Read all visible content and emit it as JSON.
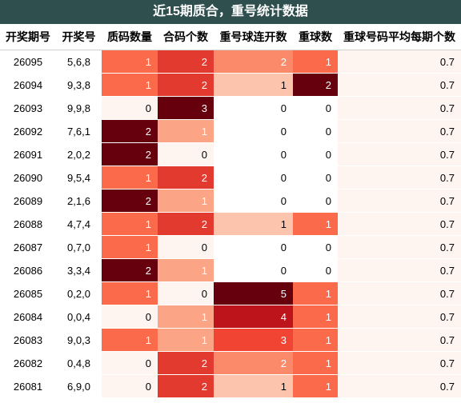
{
  "title": "近15期质合，重号统计数据",
  "headers": [
    "开奖期号",
    "开奖号",
    "质码数量",
    "合码个数",
    "重号球连开数",
    "重球数",
    "重球号码平均每期个数"
  ],
  "rows": [
    {
      "issue": "26095",
      "nums": "5,6,8",
      "prime": "1",
      "composite": "2",
      "repeat_streak": "2",
      "repeat_count": "1",
      "avg": "0.7"
    },
    {
      "issue": "26094",
      "nums": "9,3,8",
      "prime": "1",
      "composite": "2",
      "repeat_streak": "1",
      "repeat_count": "2",
      "avg": "0.7"
    },
    {
      "issue": "26093",
      "nums": "9,9,8",
      "prime": "0",
      "composite": "3",
      "repeat_streak": "0",
      "repeat_count": "0",
      "avg": "0.7"
    },
    {
      "issue": "26092",
      "nums": "7,6,1",
      "prime": "2",
      "composite": "1",
      "repeat_streak": "0",
      "repeat_count": "0",
      "avg": "0.7"
    },
    {
      "issue": "26091",
      "nums": "2,0,2",
      "prime": "2",
      "composite": "0",
      "repeat_streak": "0",
      "repeat_count": "0",
      "avg": "0.7"
    },
    {
      "issue": "26090",
      "nums": "9,5,4",
      "prime": "1",
      "composite": "2",
      "repeat_streak": "0",
      "repeat_count": "0",
      "avg": "0.7"
    },
    {
      "issue": "26089",
      "nums": "2,1,6",
      "prime": "2",
      "composite": "1",
      "repeat_streak": "0",
      "repeat_count": "0",
      "avg": "0.7"
    },
    {
      "issue": "26088",
      "nums": "4,7,4",
      "prime": "1",
      "composite": "2",
      "repeat_streak": "1",
      "repeat_count": "1",
      "avg": "0.7"
    },
    {
      "issue": "26087",
      "nums": "0,7,0",
      "prime": "1",
      "composite": "0",
      "repeat_streak": "0",
      "repeat_count": "0",
      "avg": "0.7"
    },
    {
      "issue": "26086",
      "nums": "3,3,4",
      "prime": "2",
      "composite": "1",
      "repeat_streak": "0",
      "repeat_count": "0",
      "avg": "0.7"
    },
    {
      "issue": "26085",
      "nums": "0,2,0",
      "prime": "1",
      "composite": "0",
      "repeat_streak": "5",
      "repeat_count": "1",
      "avg": "0.7"
    },
    {
      "issue": "26084",
      "nums": "0,0,4",
      "prime": "0",
      "composite": "1",
      "repeat_streak": "4",
      "repeat_count": "1",
      "avg": "0.7"
    },
    {
      "issue": "26083",
      "nums": "9,0,3",
      "prime": "1",
      "composite": "1",
      "repeat_streak": "3",
      "repeat_count": "1",
      "avg": "0.7"
    },
    {
      "issue": "26082",
      "nums": "0,4,8",
      "prime": "0",
      "composite": "2",
      "repeat_streak": "2",
      "repeat_count": "1",
      "avg": "0.7"
    },
    {
      "issue": "26081",
      "nums": "6,9,0",
      "prime": "0",
      "composite": "2",
      "repeat_streak": "1",
      "repeat_count": "1",
      "avg": "0.7"
    }
  ],
  "colors": {
    "header_bg": "#2f4f4f",
    "prime": {
      "0": "#fff5f0",
      "1": "#fb6a4a",
      "2": "#67000d"
    },
    "composite": {
      "0": "#fff5f0",
      "1": "#fca486",
      "2": "#e33a2f",
      "3": "#67000d"
    },
    "repeat_streak": {
      "0": "#ffffff",
      "1": "#fcc4ad",
      "2": "#fb8a6a",
      "3": "#f14432",
      "4": "#bc141a",
      "5": "#67000d"
    },
    "repeat_count": {
      "0": "#ffffff",
      "1": "#fb6a4a",
      "2": "#67000d"
    },
    "avg": "#fff5f0"
  }
}
